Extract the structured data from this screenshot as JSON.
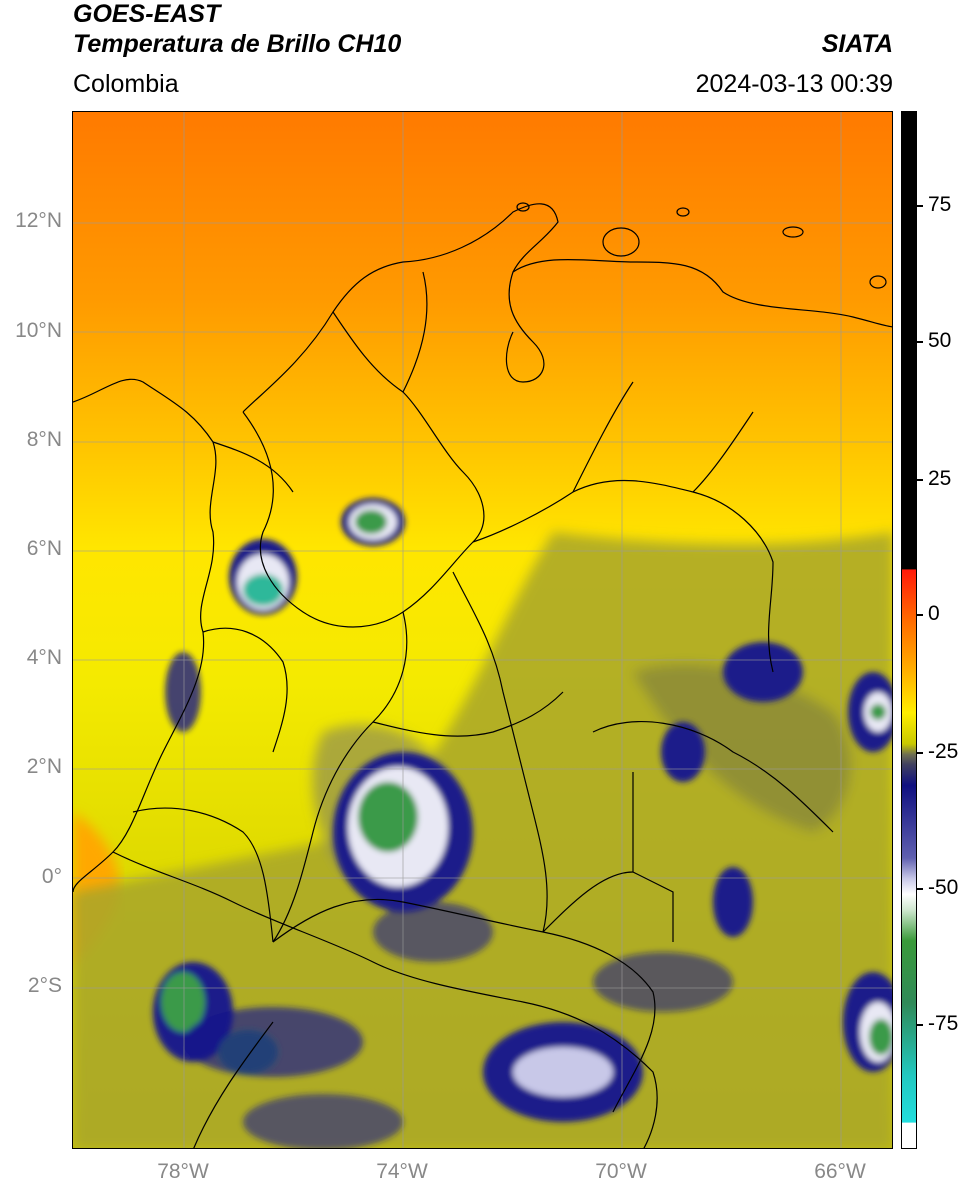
{
  "header": {
    "satellite": "GOES-EAST",
    "product": "Temperatura de Brillo CH10",
    "brand": "SIATA",
    "region": "Colombia",
    "datetime": "2024-03-13 00:39"
  },
  "map": {
    "lat_labels": [
      "12°N",
      "10°N",
      "8°N",
      "6°N",
      "4°N",
      "2°N",
      "0°",
      "2°S"
    ],
    "lon_labels": [
      "78°W",
      "74°W",
      "70°W",
      "66°W"
    ]
  },
  "colorbar": {
    "ticks": [
      "75",
      "50",
      "25",
      "0",
      "-25",
      "-50",
      "-75"
    ],
    "colors": {
      "black": "#000000",
      "red": "#e8120a",
      "orange": "#ff8c00",
      "yellow": "#ffee00",
      "olive": "#9a9a2a",
      "navy": "#101080",
      "white": "#ffffff",
      "green": "#3a9a4a",
      "cyan": "#22dddd"
    }
  }
}
